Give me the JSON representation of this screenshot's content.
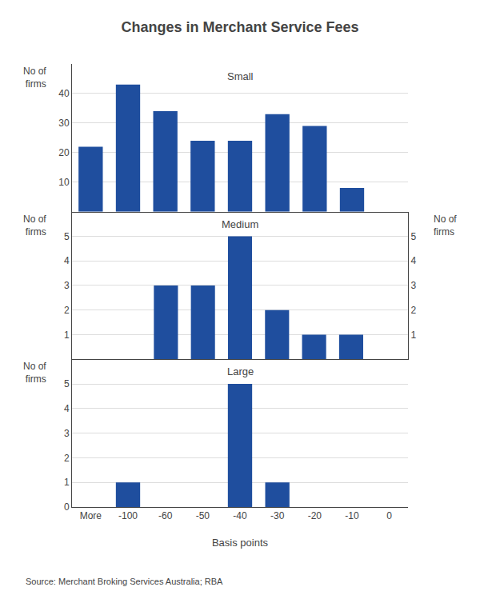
{
  "title": "Changes in Merchant Service Fees",
  "source": "Source: Merchant Broking Services Australia; RBA",
  "chart_data": [
    {
      "type": "bar",
      "title": "Small",
      "categories": [
        "More",
        "-100",
        "-60",
        "-50",
        "-40",
        "-30",
        "-20",
        "-10",
        "0"
      ],
      "values": [
        22,
        43,
        34,
        24,
        24,
        33,
        29,
        8,
        0
      ],
      "color": "#1F4E9E",
      "ylim": [
        0,
        50
      ],
      "yticks": [
        10,
        20,
        30,
        40
      ],
      "ylabel": "No of\nfirms",
      "grid": true,
      "tick_labels": "y"
    },
    {
      "type": "bar",
      "title": "Medium",
      "categories": [
        "More",
        "-100",
        "-60",
        "-50",
        "-40",
        "-30",
        "-20",
        "-10",
        "0"
      ],
      "values": [
        0,
        0,
        3,
        3,
        5,
        2,
        1,
        1,
        0
      ],
      "color": "#1F4E9E",
      "ylim": [
        0,
        6
      ],
      "yticks": [
        1,
        2,
        3,
        4,
        5
      ],
      "ylabel": "No of\nfirms",
      "y2lim": [
        0,
        6
      ],
      "y2ticks": [
        1,
        2,
        3,
        4,
        5
      ],
      "y2label": "No of\nfirms",
      "grid": true,
      "tick_labels": "y"
    },
    {
      "type": "bar",
      "title": "Large",
      "categories": [
        "More",
        "-100",
        "-60",
        "-50",
        "-40",
        "-30",
        "-20",
        "-10",
        "0"
      ],
      "values": [
        0,
        1,
        0,
        0,
        5,
        1,
        0,
        0,
        0
      ],
      "color": "#1F4E9E",
      "ylim": [
        0,
        6
      ],
      "yticks": [
        0,
        1,
        2,
        3,
        4,
        5
      ],
      "ylabel": "No of\nfirms",
      "xlabel": "Basis points",
      "grid": true
    }
  ]
}
